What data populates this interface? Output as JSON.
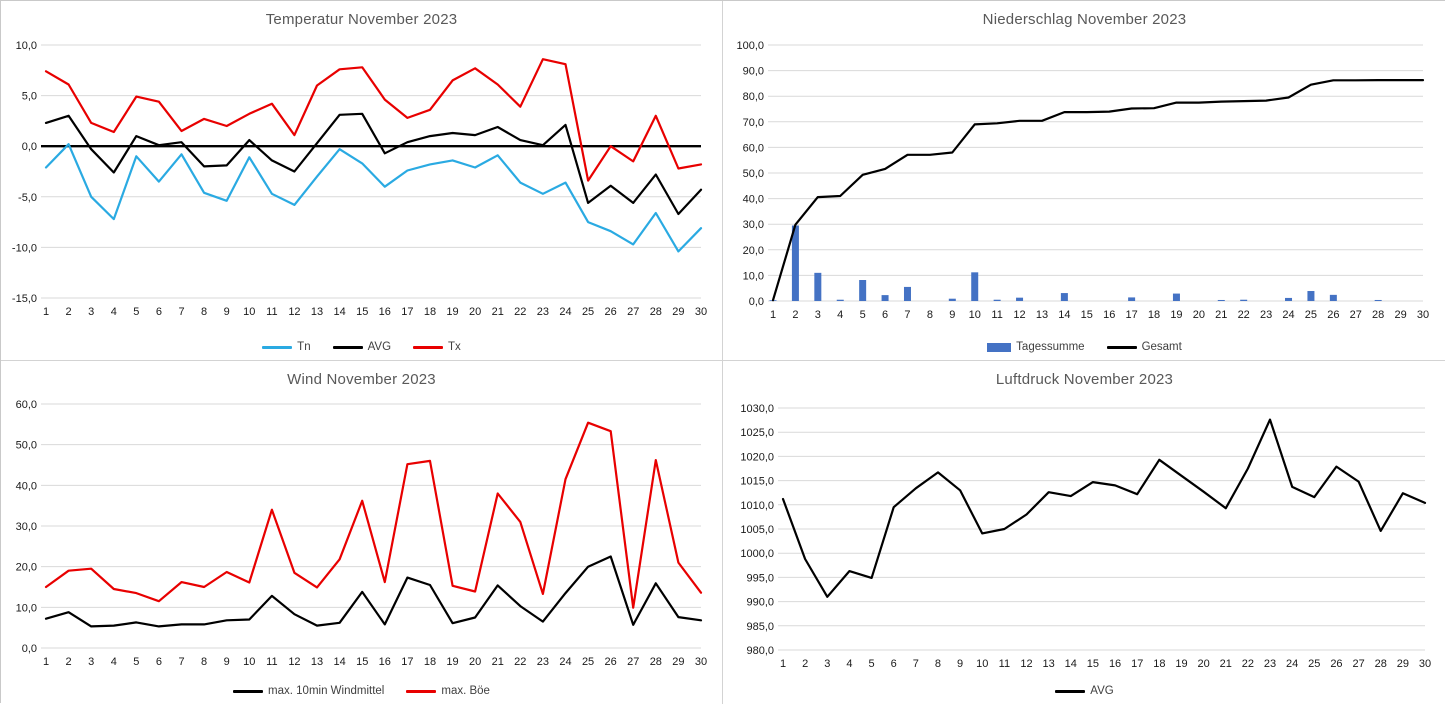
{
  "page": {
    "background": "#ffffff",
    "frame_color": "#c9c9c9",
    "grid_color": "#d9d9d9",
    "title_color": "#595959",
    "tick_color": "#1a1a1a"
  },
  "days": [
    1,
    2,
    3,
    4,
    5,
    6,
    7,
    8,
    9,
    10,
    11,
    12,
    13,
    14,
    15,
    16,
    17,
    18,
    19,
    20,
    21,
    22,
    23,
    24,
    25,
    26,
    27,
    28,
    29,
    30
  ],
  "chart_data": [
    {
      "type": "line",
      "title": "Temperatur November 2023",
      "xlabel": "",
      "ylabel": "",
      "ylim": [
        -15,
        10
      ],
      "ytick_step": 5,
      "zero_line": true,
      "legend_position": "bottom",
      "grid": true,
      "series": [
        {
          "name": "Tn",
          "type": "line",
          "color": "#2AAAE2",
          "values": [
            -2.1,
            0.2,
            -5.0,
            -7.2,
            -1.0,
            -3.5,
            -0.8,
            -4.6,
            -5.4,
            -1.1,
            -4.7,
            -5.8,
            -3.0,
            -0.3,
            -1.7,
            -4.0,
            -2.4,
            -1.8,
            -1.4,
            -2.1,
            -0.9,
            -3.6,
            -4.7,
            -3.6,
            -7.5,
            -8.4,
            -9.7,
            -6.6,
            -10.4,
            -8.1
          ]
        },
        {
          "name": "AVG",
          "type": "line",
          "color": "#000000",
          "values": [
            2.3,
            3.0,
            -0.3,
            -2.6,
            1.0,
            0.1,
            0.4,
            -2.0,
            -1.9,
            0.6,
            -1.4,
            -2.5,
            0.3,
            3.1,
            3.2,
            -0.7,
            0.4,
            1.0,
            1.3,
            1.1,
            1.9,
            0.6,
            0.1,
            2.1,
            -5.6,
            -3.9,
            -5.6,
            -2.8,
            -6.7,
            -4.3
          ]
        },
        {
          "name": "Tx",
          "type": "line",
          "color": "#E80000",
          "values": [
            7.4,
            6.1,
            2.3,
            1.4,
            4.9,
            4.4,
            1.5,
            2.7,
            2.0,
            3.2,
            4.2,
            1.1,
            6.0,
            7.6,
            7.8,
            4.6,
            2.8,
            3.6,
            6.5,
            7.7,
            6.1,
            3.9,
            8.6,
            8.1,
            -3.4,
            0.0,
            -1.5,
            3.0,
            -2.2,
            -1.8
          ]
        }
      ]
    },
    {
      "type": "bar",
      "title": "Niederschlag November 2023",
      "xlabel": "",
      "ylabel": "",
      "ylim": [
        0,
        100
      ],
      "ytick_step": 10,
      "zero_line": false,
      "legend_position": "bottom",
      "grid": true,
      "series": [
        {
          "name": "Tagessumme",
          "type": "bar",
          "color": "#4472C4",
          "values": [
            0.3,
            29.5,
            11.0,
            0.5,
            8.2,
            2.3,
            5.5,
            0,
            0.9,
            11.2,
            0.5,
            1.3,
            0,
            3.1,
            0,
            0,
            1.4,
            0,
            2.9,
            0,
            0.4,
            0.5,
            0,
            1.2,
            3.9,
            2.4,
            0,
            0.4,
            0,
            0
          ]
        },
        {
          "name": "Gesamt",
          "type": "line",
          "color": "#000000",
          "values": [
            0.3,
            29.8,
            40.6,
            41.0,
            49.3,
            51.6,
            57.1,
            57.1,
            58.0,
            69.0,
            69.4,
            70.4,
            70.4,
            73.8,
            73.8,
            74.0,
            75.2,
            75.3,
            77.5,
            77.5,
            77.9,
            78.1,
            78.3,
            79.5,
            84.5,
            86.2,
            86.2,
            86.3,
            86.3,
            86.3
          ]
        }
      ]
    },
    {
      "type": "line",
      "title": "Wind November 2023",
      "xlabel": "",
      "ylabel": "",
      "ylim": [
        0,
        60
      ],
      "ytick_step": 10,
      "zero_line": false,
      "legend_position": "bottom",
      "grid": true,
      "series": [
        {
          "name": "max. 10min Windmittel",
          "type": "line",
          "color": "#000000",
          "values": [
            7.2,
            8.8,
            5.3,
            5.5,
            6.3,
            5.3,
            5.8,
            5.8,
            6.8,
            7.0,
            12.8,
            8.3,
            5.5,
            6.2,
            13.8,
            5.8,
            17.3,
            15.5,
            6.1,
            7.5,
            15.4,
            10.3,
            6.5,
            13.5,
            20.0,
            22.5,
            5.7,
            15.9,
            7.6,
            6.8
          ]
        },
        {
          "name": "max. Böe",
          "type": "line",
          "color": "#E80000",
          "values": [
            15.0,
            19.0,
            19.5,
            14.5,
            13.5,
            11.5,
            16.2,
            15.0,
            18.7,
            16.1,
            34.0,
            18.5,
            14.9,
            21.8,
            36.2,
            16.2,
            45.2,
            46.0,
            15.3,
            13.9,
            38.0,
            31.0,
            13.3,
            41.5,
            55.4,
            53.3,
            9.9,
            46.2,
            21.0,
            13.6
          ]
        }
      ]
    },
    {
      "type": "line",
      "title": "Luftdruck November 2023",
      "xlabel": "",
      "ylabel": "",
      "ylim": [
        980,
        1030
      ],
      "ytick_step": 5,
      "zero_line": false,
      "legend_position": "bottom",
      "grid": true,
      "series": [
        {
          "name": "AVG",
          "type": "line",
          "color": "#000000",
          "values": [
            1011.2,
            998.8,
            991.0,
            996.3,
            994.9,
            1009.5,
            1013.4,
            1016.7,
            1013.0,
            1004.1,
            1005.0,
            1008.0,
            1012.6,
            1011.8,
            1014.7,
            1014.0,
            1012.2,
            1019.3,
            1016.0,
            1012.7,
            1009.3,
            1017.5,
            1027.6,
            1013.7,
            1011.6,
            1017.9,
            1014.8,
            1004.6,
            1012.4,
            1010.4
          ]
        }
      ]
    }
  ]
}
